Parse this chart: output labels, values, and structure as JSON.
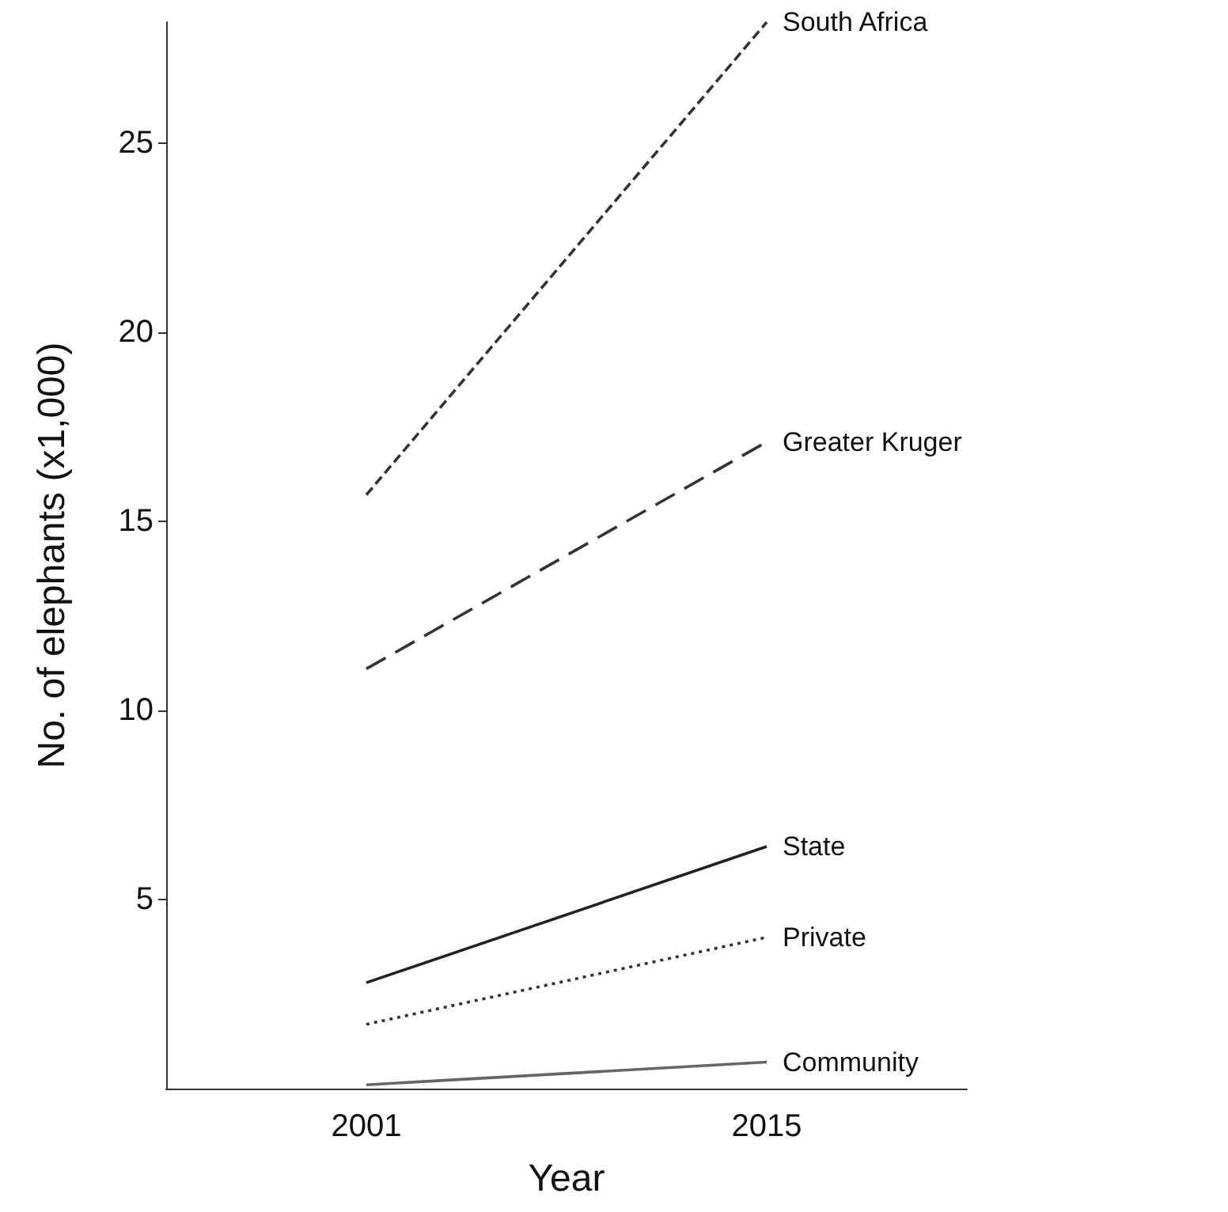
{
  "chart_data": {
    "type": "line",
    "xlabel": "Year",
    "ylabel": "No. of elephants (x1,000)",
    "categories": [
      "2001",
      "2015"
    ],
    "ylim": [
      0,
      28.2
    ],
    "yticks": [
      5,
      10,
      15,
      20,
      25
    ],
    "grid": false,
    "legend": false,
    "marker": "none",
    "series": [
      {
        "name": "South Africa",
        "color": "#333333",
        "line_style": "dashed",
        "values": [
          15.7,
          28.2
        ]
      },
      {
        "name": "Greater Kruger",
        "color": "#333333",
        "line_style": "longdash",
        "values": [
          11.1,
          17.1
        ]
      },
      {
        "name": "State",
        "color": "#222222",
        "line_style": "solid",
        "values": [
          2.8,
          6.4
        ]
      },
      {
        "name": "Private",
        "color": "#333333",
        "line_style": "dotted",
        "values": [
          1.7,
          4.0
        ]
      },
      {
        "name": "Community",
        "color": "#666666",
        "line_style": "solid",
        "values": [
          0.1,
          0.7
        ]
      }
    ]
  }
}
